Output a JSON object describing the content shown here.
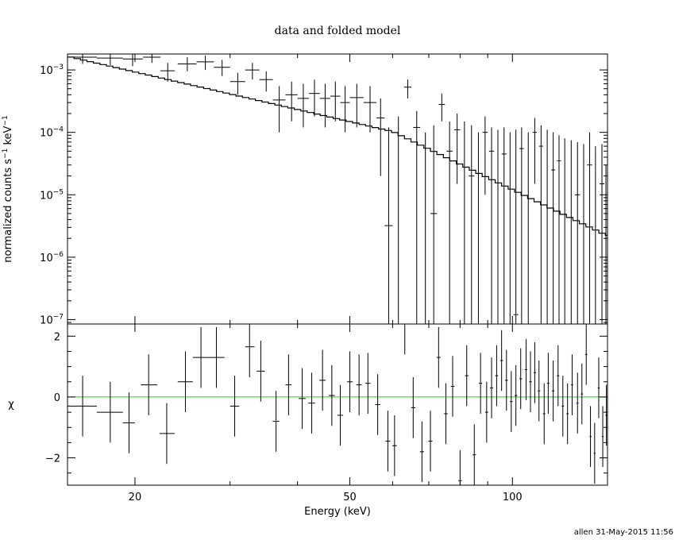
{
  "footer": "allen 31-May-2015 11:56",
  "chart_data": {
    "type": "scatter",
    "title": "data and folded model",
    "xlabel": "Energy (keV)",
    "x_scale": "log",
    "xlim": [
      15,
      150
    ],
    "x_ticks": [
      {
        "value": 20,
        "label": "20"
      },
      {
        "value": 50,
        "label": "50"
      },
      {
        "value": 100,
        "label": "100"
      }
    ],
    "top_panel": {
      "ylabel_main": "normalized counts s",
      "ylabel_sup1": "−1",
      "ylabel_unit": " keV",
      "ylabel_sup2": "−1",
      "y_scale": "log",
      "ylim": [
        8.5e-08,
        0.0018
      ],
      "y_ticks": [
        {
          "value": 0.001,
          "mantissa": "10",
          "exp": "−3"
        },
        {
          "value": 0.0001,
          "mantissa": "10",
          "exp": "−4"
        },
        {
          "value": 1e-05,
          "mantissa": "10",
          "exp": "−5"
        },
        {
          "value": 1e-06,
          "mantissa": "10",
          "exp": "−6"
        },
        {
          "value": 1e-07,
          "mantissa": "10",
          "exp": "−7"
        }
      ],
      "data": [
        {
          "x": 16.0,
          "xlo": 15.0,
          "xhi": 17.0,
          "y": 0.0016,
          "ylo": 0.00125,
          "yhi": 0.0018
        },
        {
          "x": 18.0,
          "xlo": 17.0,
          "xhi": 19.0,
          "y": 0.00155,
          "ylo": 0.0012,
          "yhi": 0.0018
        },
        {
          "x": 19.8,
          "xlo": 19.0,
          "xhi": 20.7,
          "y": 0.0015,
          "ylo": 0.00115,
          "yhi": 0.0018
        },
        {
          "x": 21.5,
          "xlo": 20.7,
          "xhi": 22.3,
          "y": 0.0016,
          "ylo": 0.0013,
          "yhi": 0.0018
        },
        {
          "x": 23.0,
          "xlo": 22.3,
          "xhi": 23.7,
          "y": 0.00097,
          "ylo": 0.00065,
          "yhi": 0.0013
        },
        {
          "x": 25.0,
          "xlo": 24.0,
          "xhi": 26.0,
          "y": 0.00125,
          "ylo": 0.00095,
          "yhi": 0.0016
        },
        {
          "x": 27.0,
          "xlo": 26.0,
          "xhi": 28.0,
          "y": 0.00135,
          "ylo": 0.001,
          "yhi": 0.0017
        },
        {
          "x": 29.0,
          "xlo": 28.0,
          "xhi": 30.0,
          "y": 0.0011,
          "ylo": 0.0008,
          "yhi": 0.00145
        },
        {
          "x": 31.0,
          "xlo": 30.0,
          "xhi": 32.0,
          "y": 0.00065,
          "ylo": 0.0004,
          "yhi": 0.0009
        },
        {
          "x": 33.0,
          "xlo": 32.0,
          "xhi": 34.0,
          "y": 0.001,
          "ylo": 0.0007,
          "yhi": 0.0013
        },
        {
          "x": 35.0,
          "xlo": 34.0,
          "xhi": 36.0,
          "y": 0.0007,
          "ylo": 0.00045,
          "yhi": 0.00095
        },
        {
          "x": 37.0,
          "xlo": 36.0,
          "xhi": 38.0,
          "y": 0.00033,
          "ylo": 0.0001,
          "yhi": 0.00055
        },
        {
          "x": 39.0,
          "xlo": 38.0,
          "xhi": 40.0,
          "y": 0.0004,
          "ylo": 0.00015,
          "yhi": 0.00065
        },
        {
          "x": 41.0,
          "xlo": 40.0,
          "xhi": 42.0,
          "y": 0.00035,
          "ylo": 0.00012,
          "yhi": 0.0006
        },
        {
          "x": 43.0,
          "xlo": 42.0,
          "xhi": 44.0,
          "y": 0.00042,
          "ylo": 0.00018,
          "yhi": 0.0007
        },
        {
          "x": 45.0,
          "xlo": 44.0,
          "xhi": 46.0,
          "y": 0.00035,
          "ylo": 0.00012,
          "yhi": 0.0006
        },
        {
          "x": 47.0,
          "xlo": 46.0,
          "xhi": 48.0,
          "y": 0.00038,
          "ylo": 0.00015,
          "yhi": 0.00065
        },
        {
          "x": 49.0,
          "xlo": 48.0,
          "xhi": 50.0,
          "y": 0.0003,
          "ylo": 0.0001,
          "yhi": 0.00055
        },
        {
          "x": 51.5,
          "xlo": 50.0,
          "xhi": 53.0,
          "y": 0.00036,
          "ylo": 0.00012,
          "yhi": 0.0006
        },
        {
          "x": 54.5,
          "xlo": 53.0,
          "xhi": 56.0,
          "y": 0.0003,
          "ylo": 0.0001,
          "yhi": 0.00055
        },
        {
          "x": 57.0,
          "xlo": 56.0,
          "xhi": 58.0,
          "y": 0.00017,
          "ylo": 2e-05,
          "yhi": 0.00035
        },
        {
          "x": 59.0,
          "xlo": 58.0,
          "xhi": 60.0,
          "y": 3.2e-06,
          "ylo": 8.5e-08,
          "yhi": 0.00012
        },
        {
          "x": 61.5,
          "xlo": 60.5,
          "xhi": 62.5,
          "y": 8.5e-08,
          "ylo": 8.5e-08,
          "yhi": 0.00018
        },
        {
          "x": 64.0,
          "xlo": 63.0,
          "xhi": 65.0,
          "y": 0.00053,
          "ylo": 0.00035,
          "yhi": 0.0007
        },
        {
          "x": 66.5,
          "xlo": 65.5,
          "xhi": 67.5,
          "y": 0.00012,
          "ylo": 8.5e-08,
          "yhi": 0.00022
        },
        {
          "x": 69.0,
          "xlo": 68.0,
          "xhi": 70.0,
          "y": 8.5e-08,
          "ylo": 8.5e-08,
          "yhi": 0.0001
        },
        {
          "x": 71.5,
          "xlo": 70.5,
          "xhi": 72.5,
          "y": 5e-06,
          "ylo": 8.5e-08,
          "yhi": 0.00013
        },
        {
          "x": 74.0,
          "xlo": 73.0,
          "xhi": 75.0,
          "y": 0.00028,
          "ylo": 0.00015,
          "yhi": 0.00042
        },
        {
          "x": 76.5,
          "xlo": 75.5,
          "xhi": 77.5,
          "y": 5e-05,
          "ylo": 8.5e-08,
          "yhi": 0.00015
        },
        {
          "x": 79.0,
          "xlo": 78.0,
          "xhi": 80.0,
          "y": 0.00011,
          "ylo": 1.5e-05,
          "yhi": 0.0002
        },
        {
          "x": 81.5,
          "xlo": 80.5,
          "xhi": 82.5,
          "y": 8.5e-08,
          "ylo": 8.5e-08,
          "yhi": 0.00015
        },
        {
          "x": 84.0,
          "xlo": 83.0,
          "xhi": 85.0,
          "y": 2e-05,
          "ylo": 8.5e-08,
          "yhi": 0.00013
        },
        {
          "x": 86.5,
          "xlo": 85.5,
          "xhi": 87.5,
          "y": 8.5e-08,
          "ylo": 8.5e-08,
          "yhi": 0.0001
        },
        {
          "x": 89.0,
          "xlo": 88.0,
          "xhi": 90.0,
          "y": 0.0001,
          "ylo": 1e-05,
          "yhi": 0.00018
        },
        {
          "x": 91.5,
          "xlo": 90.5,
          "xhi": 92.5,
          "y": 5e-05,
          "ylo": 8.5e-08,
          "yhi": 0.00012
        },
        {
          "x": 94.0,
          "xlo": 93.0,
          "xhi": 95.0,
          "y": 8.5e-08,
          "ylo": 8.5e-08,
          "yhi": 0.00011
        },
        {
          "x": 96.5,
          "xlo": 95.5,
          "xhi": 97.5,
          "y": 4.5e-05,
          "ylo": 8.5e-08,
          "yhi": 0.00012
        },
        {
          "x": 99.0,
          "xlo": 98.0,
          "xhi": 100.0,
          "y": 8.5e-08,
          "ylo": 8.5e-08,
          "yhi": 0.0001
        },
        {
          "x": 101.5,
          "xlo": 100.5,
          "xhi": 102.5,
          "y": 1.2e-07,
          "ylo": 8.5e-08,
          "yhi": 0.00011
        },
        {
          "x": 104.0,
          "xlo": 103.0,
          "xhi": 105.0,
          "y": 5.5e-05,
          "ylo": 8.5e-08,
          "yhi": 0.00012
        },
        {
          "x": 107.0,
          "xlo": 106.0,
          "xhi": 108.0,
          "y": 8.5e-08,
          "ylo": 8.5e-08,
          "yhi": 0.0001
        },
        {
          "x": 110.0,
          "xlo": 109.0,
          "xhi": 111.0,
          "y": 0.0001,
          "ylo": 1.5e-05,
          "yhi": 0.00017
        },
        {
          "x": 113.0,
          "xlo": 112.0,
          "xhi": 114.0,
          "y": 6e-05,
          "ylo": 8.5e-08,
          "yhi": 0.00013
        },
        {
          "x": 116.0,
          "xlo": 115.0,
          "xhi": 117.0,
          "y": 8.5e-08,
          "ylo": 8.5e-08,
          "yhi": 0.00011
        },
        {
          "x": 119.0,
          "xlo": 118.0,
          "xhi": 120.0,
          "y": 2.5e-05,
          "ylo": 8.5e-08,
          "yhi": 0.0001
        },
        {
          "x": 122.0,
          "xlo": 121.0,
          "xhi": 123.0,
          "y": 3.5e-05,
          "ylo": 8.5e-08,
          "yhi": 9e-05
        },
        {
          "x": 125.0,
          "xlo": 124.0,
          "xhi": 126.0,
          "y": 8.5e-08,
          "ylo": 8.5e-08,
          "yhi": 8e-05
        },
        {
          "x": 128.5,
          "xlo": 127.0,
          "xhi": 130.0,
          "y": 8.5e-08,
          "ylo": 8.5e-08,
          "yhi": 7.5e-05
        },
        {
          "x": 132.0,
          "xlo": 130.5,
          "xhi": 133.5,
          "y": 1e-05,
          "ylo": 8.5e-08,
          "yhi": 7e-05
        },
        {
          "x": 135.5,
          "xlo": 134.0,
          "xhi": 137.0,
          "y": 8.5e-08,
          "ylo": 8.5e-08,
          "yhi": 6.5e-05
        },
        {
          "x": 139.0,
          "xlo": 137.5,
          "xhi": 140.5,
          "y": 3e-05,
          "ylo": 8.5e-08,
          "yhi": 0.0001
        },
        {
          "x": 142.5,
          "xlo": 141.0,
          "xhi": 144.0,
          "y": 8.5e-08,
          "ylo": 8.5e-08,
          "yhi": 6e-05
        },
        {
          "x": 146.5,
          "xlo": 145.0,
          "xhi": 148.0,
          "y": 1.5e-05,
          "ylo": 8.5e-08,
          "yhi": 6.5e-05
        },
        {
          "x": 149.0,
          "xlo": 148.0,
          "xhi": 150.0,
          "y": 8.5e-08,
          "ylo": 8.5e-08,
          "yhi": 3e-05
        }
      ],
      "model": {
        "e0": 15.0,
        "e1": 150.0,
        "step": 0.012,
        "amp": 0.00165,
        "index": -2.0,
        "break_e": 60.0,
        "index2": -4.2
      }
    },
    "bottom_panel": {
      "ylabel": "χ",
      "ylim": [
        -2.9,
        2.4
      ],
      "y_ticks": [
        {
          "value": 2,
          "label": "2"
        },
        {
          "value": 0,
          "label": "0"
        },
        {
          "value": -2,
          "label": "−2"
        }
      ],
      "zero_line_color": "#22cc22",
      "data": [
        {
          "x": 16.0,
          "xlo": 15.0,
          "xhi": 17.0,
          "y": -0.3,
          "err": 1.0
        },
        {
          "x": 18.0,
          "xlo": 17.0,
          "xhi": 19.0,
          "y": -0.5,
          "err": 1.0
        },
        {
          "x": 19.5,
          "xlo": 19.0,
          "xhi": 20.0,
          "y": -0.85,
          "err": 1.0
        },
        {
          "x": 21.2,
          "xlo": 20.5,
          "xhi": 22.0,
          "y": 0.4,
          "err": 1.0
        },
        {
          "x": 22.9,
          "xlo": 22.2,
          "xhi": 23.7,
          "y": -1.2,
          "err": 1.0
        },
        {
          "x": 24.8,
          "xlo": 24.0,
          "xhi": 25.6,
          "y": 0.5,
          "err": 1.0
        },
        {
          "x": 26.5,
          "xlo": 25.6,
          "xhi": 27.4,
          "y": 1.3,
          "err": 1.0
        },
        {
          "x": 28.3,
          "xlo": 27.4,
          "xhi": 29.3,
          "y": 1.3,
          "err": 1.0
        },
        {
          "x": 30.6,
          "xlo": 30.0,
          "xhi": 31.2,
          "y": -0.3,
          "err": 1.0
        },
        {
          "x": 32.6,
          "xlo": 32.0,
          "xhi": 33.3,
          "y": 1.65,
          "err": 1.0
        },
        {
          "x": 34.2,
          "xlo": 33.6,
          "xhi": 34.8,
          "y": 0.85,
          "err": 1.0
        },
        {
          "x": 36.5,
          "xlo": 36.0,
          "xhi": 37.0,
          "y": -0.8,
          "err": 1.0
        },
        {
          "x": 38.5,
          "xlo": 38.0,
          "xhi": 39.0,
          "y": 0.4,
          "err": 1.0
        },
        {
          "x": 40.8,
          "xlo": 40.2,
          "xhi": 41.4,
          "y": -0.05,
          "err": 1.0
        },
        {
          "x": 42.5,
          "xlo": 41.9,
          "xhi": 43.1,
          "y": -0.2,
          "err": 1.0
        },
        {
          "x": 44.5,
          "xlo": 43.9,
          "xhi": 45.1,
          "y": 0.55,
          "err": 1.0
        },
        {
          "x": 46.3,
          "xlo": 45.7,
          "xhi": 46.9,
          "y": 0.05,
          "err": 1.0
        },
        {
          "x": 48.0,
          "xlo": 47.4,
          "xhi": 48.6,
          "y": -0.6,
          "err": 1.0
        },
        {
          "x": 50.0,
          "xlo": 49.4,
          "xhi": 50.6,
          "y": 0.5,
          "err": 1.0
        },
        {
          "x": 52.0,
          "xlo": 51.4,
          "xhi": 52.6,
          "y": 0.4,
          "err": 1.0
        },
        {
          "x": 54.0,
          "xlo": 53.4,
          "xhi": 54.6,
          "y": 0.45,
          "err": 1.0
        },
        {
          "x": 56.3,
          "xlo": 55.7,
          "xhi": 56.9,
          "y": -0.25,
          "err": 1.0
        },
        {
          "x": 58.8,
          "xlo": 58.2,
          "xhi": 59.4,
          "y": -1.45,
          "err": 1.0
        },
        {
          "x": 60.5,
          "xlo": 59.9,
          "xhi": 61.1,
          "y": -1.6,
          "err": 1.0
        },
        {
          "x": 63.2,
          "xlo": 62.6,
          "xhi": 63.8,
          "y": 2.4,
          "err": 1.0
        },
        {
          "x": 65.5,
          "xlo": 64.9,
          "xhi": 66.1,
          "y": -0.35,
          "err": 1.0
        },
        {
          "x": 68.0,
          "xlo": 67.4,
          "xhi": 68.6,
          "y": -1.8,
          "err": 1.0
        },
        {
          "x": 70.5,
          "xlo": 69.9,
          "xhi": 71.1,
          "y": -1.45,
          "err": 1.0
        },
        {
          "x": 73.0,
          "xlo": 72.4,
          "xhi": 73.6,
          "y": 1.3,
          "err": 1.0
        },
        {
          "x": 75.3,
          "xlo": 74.7,
          "xhi": 75.9,
          "y": -0.55,
          "err": 1.0
        },
        {
          "x": 77.5,
          "xlo": 76.9,
          "xhi": 78.1,
          "y": 0.35,
          "err": 1.0
        },
        {
          "x": 80.0,
          "xlo": 79.4,
          "xhi": 80.6,
          "y": -2.75,
          "err": 1.0
        },
        {
          "x": 82.3,
          "xlo": 81.7,
          "xhi": 82.9,
          "y": 0.7,
          "err": 1.0
        },
        {
          "x": 85.0,
          "xlo": 84.4,
          "xhi": 85.6,
          "y": -1.9,
          "err": 1.0
        },
        {
          "x": 87.3,
          "xlo": 86.7,
          "xhi": 87.9,
          "y": 0.45,
          "err": 1.0
        },
        {
          "x": 89.6,
          "xlo": 89.0,
          "xhi": 90.2,
          "y": -0.5,
          "err": 1.0
        },
        {
          "x": 91.5,
          "xlo": 90.9,
          "xhi": 92.1,
          "y": 0.3,
          "err": 1.0
        },
        {
          "x": 93.5,
          "xlo": 92.9,
          "xhi": 94.1,
          "y": 0.7,
          "err": 1.0
        },
        {
          "x": 95.5,
          "xlo": 94.9,
          "xhi": 96.1,
          "y": 1.2,
          "err": 1.0
        },
        {
          "x": 97.5,
          "xlo": 96.9,
          "xhi": 98.1,
          "y": 0.55,
          "err": 1.0
        },
        {
          "x": 99.5,
          "xlo": 98.9,
          "xhi": 100.1,
          "y": -0.15,
          "err": 1.0
        },
        {
          "x": 101.5,
          "xlo": 100.9,
          "xhi": 102.1,
          "y": 0.05,
          "err": 1.0
        },
        {
          "x": 103.6,
          "xlo": 103.0,
          "xhi": 104.2,
          "y": 0.6,
          "err": 1.0
        },
        {
          "x": 106.0,
          "xlo": 105.4,
          "xhi": 106.6,
          "y": 0.9,
          "err": 1.0
        },
        {
          "x": 108.0,
          "xlo": 107.4,
          "xhi": 108.6,
          "y": 0.5,
          "err": 1.0
        },
        {
          "x": 110.0,
          "xlo": 109.4,
          "xhi": 110.6,
          "y": 0.8,
          "err": 1.0
        },
        {
          "x": 112.0,
          "xlo": 111.4,
          "xhi": 112.6,
          "y": 0.2,
          "err": 1.0
        },
        {
          "x": 114.5,
          "xlo": 113.9,
          "xhi": 115.1,
          "y": -0.55,
          "err": 1.0
        },
        {
          "x": 116.5,
          "xlo": 115.9,
          "xhi": 117.1,
          "y": 0.45,
          "err": 1.0
        },
        {
          "x": 119.0,
          "xlo": 118.4,
          "xhi": 119.6,
          "y": 0.2,
          "err": 1.0
        },
        {
          "x": 121.5,
          "xlo": 120.9,
          "xhi": 122.1,
          "y": 0.7,
          "err": 1.0
        },
        {
          "x": 124.0,
          "xlo": 123.4,
          "xhi": 124.6,
          "y": -0.3,
          "err": 1.0
        },
        {
          "x": 126.5,
          "xlo": 125.9,
          "xhi": 127.1,
          "y": -0.55,
          "err": 1.0
        },
        {
          "x": 129.0,
          "xlo": 128.4,
          "xhi": 129.6,
          "y": 0.4,
          "err": 1.0
        },
        {
          "x": 132.0,
          "xlo": 131.4,
          "xhi": 132.6,
          "y": -0.2,
          "err": 1.0
        },
        {
          "x": 134.5,
          "xlo": 133.9,
          "xhi": 135.1,
          "y": 0.1,
          "err": 1.0
        },
        {
          "x": 137.0,
          "xlo": 136.4,
          "xhi": 137.6,
          "y": 1.4,
          "err": 1.0
        },
        {
          "x": 139.5,
          "xlo": 138.9,
          "xhi": 140.1,
          "y": -1.3,
          "err": 1.0
        },
        {
          "x": 142.0,
          "xlo": 141.4,
          "xhi": 142.6,
          "y": -1.85,
          "err": 1.0
        },
        {
          "x": 144.5,
          "xlo": 143.9,
          "xhi": 145.1,
          "y": 0.3,
          "err": 1.0
        },
        {
          "x": 147.0,
          "xlo": 146.4,
          "xhi": 147.6,
          "y": -1.3,
          "err": 1.0
        },
        {
          "x": 149.3,
          "xlo": 148.7,
          "xhi": 149.9,
          "y": -0.6,
          "err": 1.0
        }
      ]
    }
  }
}
